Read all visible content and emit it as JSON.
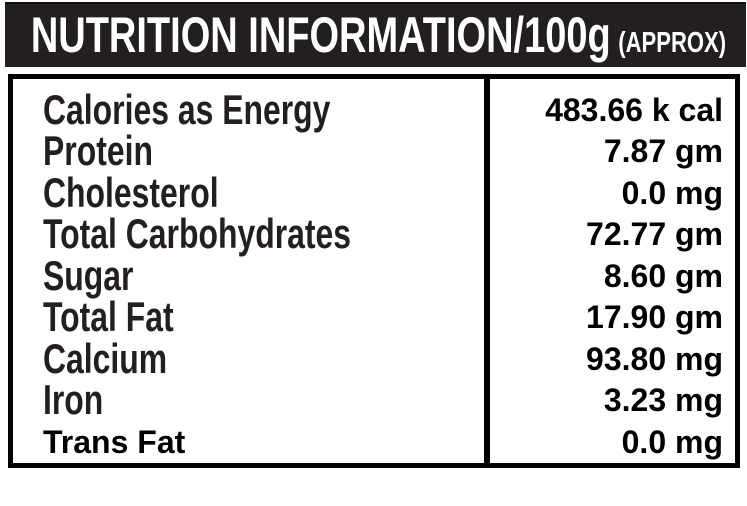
{
  "header": {
    "title": "NUTRITION INFORMATION/100g",
    "subtitle": "(APPROX)"
  },
  "rows": [
    {
      "label": "Calories as Energy",
      "value": "483.66 k cal"
    },
    {
      "label": "Protein",
      "value": "7.87 gm"
    },
    {
      "label": "Cholesterol",
      "value": "0.0 mg"
    },
    {
      "label": "Total Carbohydrates",
      "value": "72.77 gm"
    },
    {
      "label": "Sugar",
      "value": "8.60 gm"
    },
    {
      "label": "Total Fat",
      "value": "17.90 gm"
    },
    {
      "label": "Calcium",
      "value": "93.80 mg"
    },
    {
      "label": "Iron",
      "value": "3.23 mg"
    },
    {
      "label": "Trans Fat",
      "value": "0.0 mg"
    }
  ],
  "colors": {
    "header_bg": "#231f20",
    "header_text": "#ffffff",
    "label_text": "#231f20",
    "value_text": "#000000",
    "border": "#000000",
    "background": "#ffffff"
  }
}
